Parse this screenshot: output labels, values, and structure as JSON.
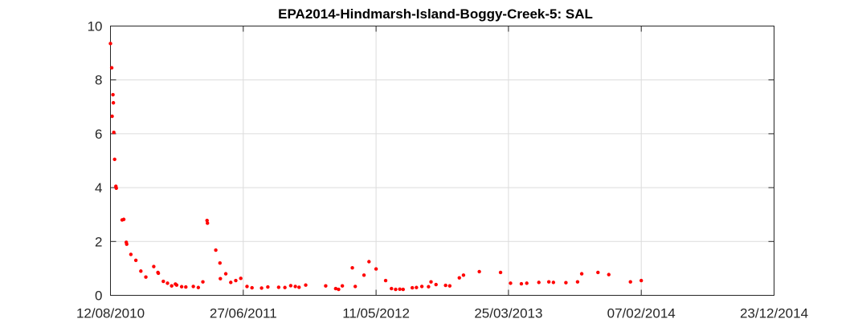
{
  "chart_data": {
    "type": "scatter",
    "title": "EPA2014-Hindmarsh-Island-Boggy-Creek-5: SAL",
    "xlabel": "",
    "ylabel": "",
    "x_type": "date",
    "xlim": [
      "2010-08-12",
      "2014-12-23"
    ],
    "ylim": [
      0,
      10
    ],
    "x_ticks": [
      {
        "date": "2010-08-12",
        "label": "12/08/2010"
      },
      {
        "date": "2011-06-27",
        "label": "27/06/2011"
      },
      {
        "date": "2012-05-11",
        "label": "11/05/2012"
      },
      {
        "date": "2013-03-25",
        "label": "25/03/2013"
      },
      {
        "date": "2014-02-07",
        "label": "07/02/2014"
      },
      {
        "date": "2014-12-23",
        "label": "23/12/2014"
      }
    ],
    "y_ticks": [
      0,
      2,
      4,
      6,
      8,
      10
    ],
    "y_tick_labels": [
      "0",
      "2",
      "4",
      "6",
      "8",
      "10"
    ],
    "grid": true,
    "marker_color": "#ff0000",
    "series": [
      {
        "points": [
          [
            "2010-08-12",
            9.35
          ],
          [
            "2010-08-15",
            8.45
          ],
          [
            "2010-08-16",
            6.65
          ],
          [
            "2010-08-18",
            7.45
          ],
          [
            "2010-08-19",
            7.15
          ],
          [
            "2010-08-20",
            6.05
          ],
          [
            "2010-08-22",
            5.05
          ],
          [
            "2010-08-25",
            4.05
          ],
          [
            "2010-08-26",
            3.98
          ],
          [
            "2010-09-09",
            2.8
          ],
          [
            "2010-09-13",
            2.82
          ],
          [
            "2010-09-19",
            1.97
          ],
          [
            "2010-09-20",
            1.9
          ],
          [
            "2010-09-30",
            1.52
          ],
          [
            "2010-10-12",
            1.3
          ],
          [
            "2010-10-24",
            0.9
          ],
          [
            "2010-11-05",
            0.68
          ],
          [
            "2010-11-24",
            1.07
          ],
          [
            "2010-12-04",
            0.85
          ],
          [
            "2010-12-05",
            0.82
          ],
          [
            "2010-12-17",
            0.52
          ],
          [
            "2010-12-27",
            0.45
          ],
          [
            "2011-01-06",
            0.35
          ],
          [
            "2011-01-15",
            0.42
          ],
          [
            "2011-01-18",
            0.38
          ],
          [
            "2011-01-30",
            0.32
          ],
          [
            "2011-02-09",
            0.31
          ],
          [
            "2011-02-27",
            0.33
          ],
          [
            "2011-03-11",
            0.29
          ],
          [
            "2011-03-22",
            0.5
          ],
          [
            "2011-04-01",
            2.78
          ],
          [
            "2011-04-02",
            2.68
          ],
          [
            "2011-04-22",
            1.68
          ],
          [
            "2011-05-02",
            1.2
          ],
          [
            "2011-05-03",
            0.62
          ],
          [
            "2011-05-16",
            0.8
          ],
          [
            "2011-05-28",
            0.48
          ],
          [
            "2011-06-09",
            0.55
          ],
          [
            "2011-06-21",
            0.63
          ],
          [
            "2011-07-06",
            0.33
          ],
          [
            "2011-07-18",
            0.28
          ],
          [
            "2011-08-10",
            0.27
          ],
          [
            "2011-08-25",
            0.31
          ],
          [
            "2011-09-20",
            0.3
          ],
          [
            "2011-10-05",
            0.29
          ],
          [
            "2011-10-19",
            0.36
          ],
          [
            "2011-10-30",
            0.33
          ],
          [
            "2011-11-08",
            0.3
          ],
          [
            "2011-11-24",
            0.38
          ],
          [
            "2012-01-11",
            0.35
          ],
          [
            "2012-02-04",
            0.25
          ],
          [
            "2012-02-11",
            0.22
          ],
          [
            "2012-02-20",
            0.35
          ],
          [
            "2012-03-15",
            1.02
          ],
          [
            "2012-03-22",
            0.33
          ],
          [
            "2012-04-12",
            0.75
          ],
          [
            "2012-04-24",
            1.25
          ],
          [
            "2012-05-11",
            0.98
          ],
          [
            "2012-06-03",
            0.55
          ],
          [
            "2012-06-17",
            0.25
          ],
          [
            "2012-06-27",
            0.22
          ],
          [
            "2012-07-07",
            0.23
          ],
          [
            "2012-07-15",
            0.22
          ],
          [
            "2012-08-06",
            0.28
          ],
          [
            "2012-08-16",
            0.29
          ],
          [
            "2012-08-29",
            0.33
          ],
          [
            "2012-09-14",
            0.32
          ],
          [
            "2012-09-20",
            0.5
          ],
          [
            "2012-10-02",
            0.4
          ],
          [
            "2012-10-25",
            0.37
          ],
          [
            "2012-11-04",
            0.35
          ],
          [
            "2012-11-27",
            0.65
          ],
          [
            "2012-12-07",
            0.75
          ],
          [
            "2013-01-14",
            0.88
          ],
          [
            "2013-03-06",
            0.85
          ],
          [
            "2013-03-30",
            0.45
          ],
          [
            "2013-04-25",
            0.43
          ],
          [
            "2013-05-08",
            0.45
          ],
          [
            "2013-06-06",
            0.48
          ],
          [
            "2013-06-30",
            0.5
          ],
          [
            "2013-07-11",
            0.48
          ],
          [
            "2013-08-10",
            0.47
          ],
          [
            "2013-09-07",
            0.5
          ],
          [
            "2013-09-17",
            0.8
          ],
          [
            "2013-10-26",
            0.85
          ],
          [
            "2013-11-21",
            0.77
          ],
          [
            "2014-01-12",
            0.5
          ],
          [
            "2014-02-07",
            0.55
          ]
        ]
      }
    ]
  }
}
